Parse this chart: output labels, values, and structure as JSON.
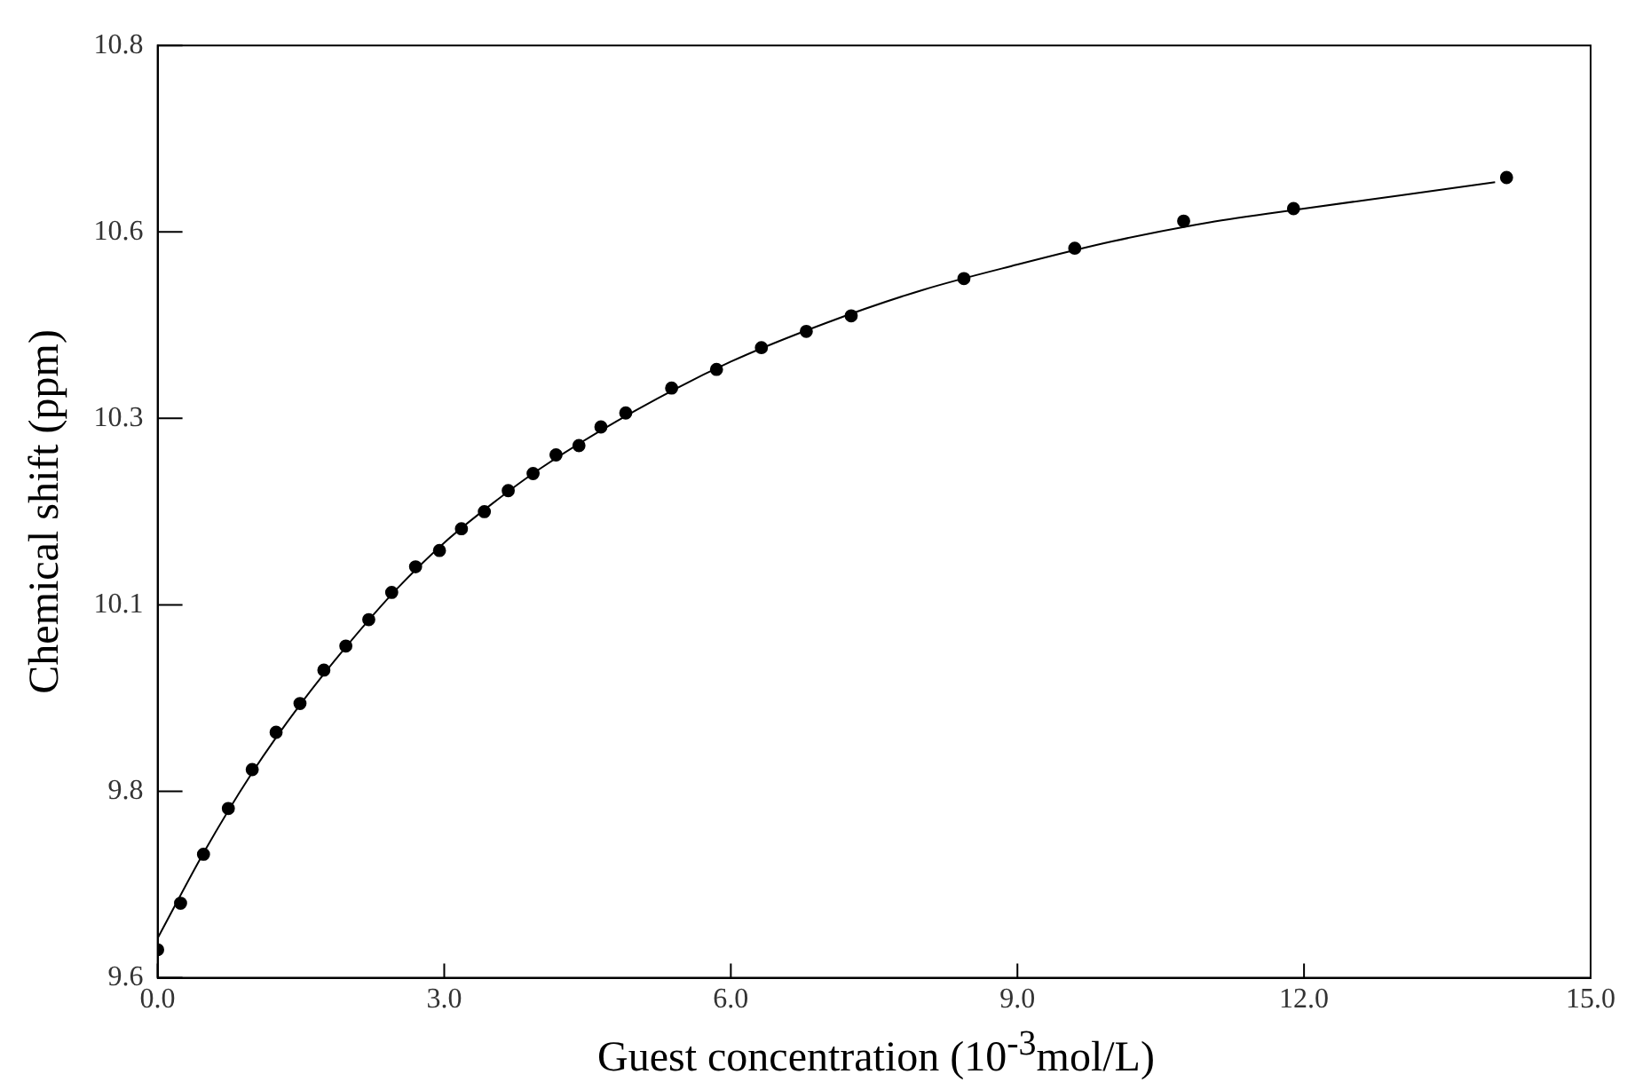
{
  "chart_data": {
    "type": "scatter",
    "xlabel": "Guest concentration (10$^{-3}$mol/L)",
    "ylabel": "Chemical shift (ppm)",
    "xlim": [
      0,
      15
    ],
    "ylim": [
      9.6,
      10.8
    ],
    "xticks": [
      {
        "value": 0,
        "label": "0.0"
      },
      {
        "value": 3,
        "label": "3.0"
      },
      {
        "value": 6,
        "label": "6.0"
      },
      {
        "value": 9,
        "label": "9.0"
      },
      {
        "value": 12,
        "label": "12.0"
      },
      {
        "value": 15,
        "label": "15.0"
      }
    ],
    "yticks": [
      {
        "value": 9.6,
        "label": "9.6"
      },
      {
        "value": 9.84,
        "label": "9.8"
      },
      {
        "value": 10.08,
        "label": "10.1"
      },
      {
        "value": 10.32,
        "label": "10.3"
      },
      {
        "value": 10.56,
        "label": "10.6"
      },
      {
        "value": 10.8,
        "label": "10.8"
      }
    ],
    "grid": false,
    "series": [
      {
        "type": "scatter",
        "marker": "circle",
        "color": "#000000",
        "x": [
          0,
          0.24,
          0.48,
          0.74,
          0.99,
          1.24,
          1.49,
          1.74,
          1.97,
          2.21,
          2.45,
          2.7,
          2.95,
          3.18,
          3.42,
          3.67,
          3.93,
          4.17,
          4.41,
          4.64,
          4.9,
          5.38,
          5.85,
          6.32,
          6.79,
          7.26,
          8.44,
          9.6,
          10.74,
          11.89,
          14.12
        ],
        "values": [
          9.636,
          9.696,
          9.759,
          9.818,
          9.868,
          9.916,
          9.953,
          9.996,
          10.027,
          10.061,
          10.096,
          10.129,
          10.15,
          10.178,
          10.2,
          10.227,
          10.249,
          10.273,
          10.285,
          10.309,
          10.327,
          10.359,
          10.383,
          10.411,
          10.432,
          10.452,
          10.5,
          10.539,
          10.574,
          10.59,
          10.63
        ]
      },
      {
        "type": "line",
        "marker": "none",
        "color": "#000000",
        "line_style": "solid",
        "x": [
          0,
          0.5,
          1,
          1.5,
          2,
          2.5,
          3,
          3.5,
          4,
          5,
          6,
          7,
          8,
          9,
          10,
          11,
          12,
          13,
          14
        ],
        "values": [
          9.651,
          9.765,
          9.866,
          9.953,
          10.03,
          10.1,
          10.16,
          10.21,
          10.255,
          10.33,
          10.393,
          10.443,
          10.485,
          10.518,
          10.548,
          10.572,
          10.59,
          10.607,
          10.624
        ]
      }
    ]
  }
}
